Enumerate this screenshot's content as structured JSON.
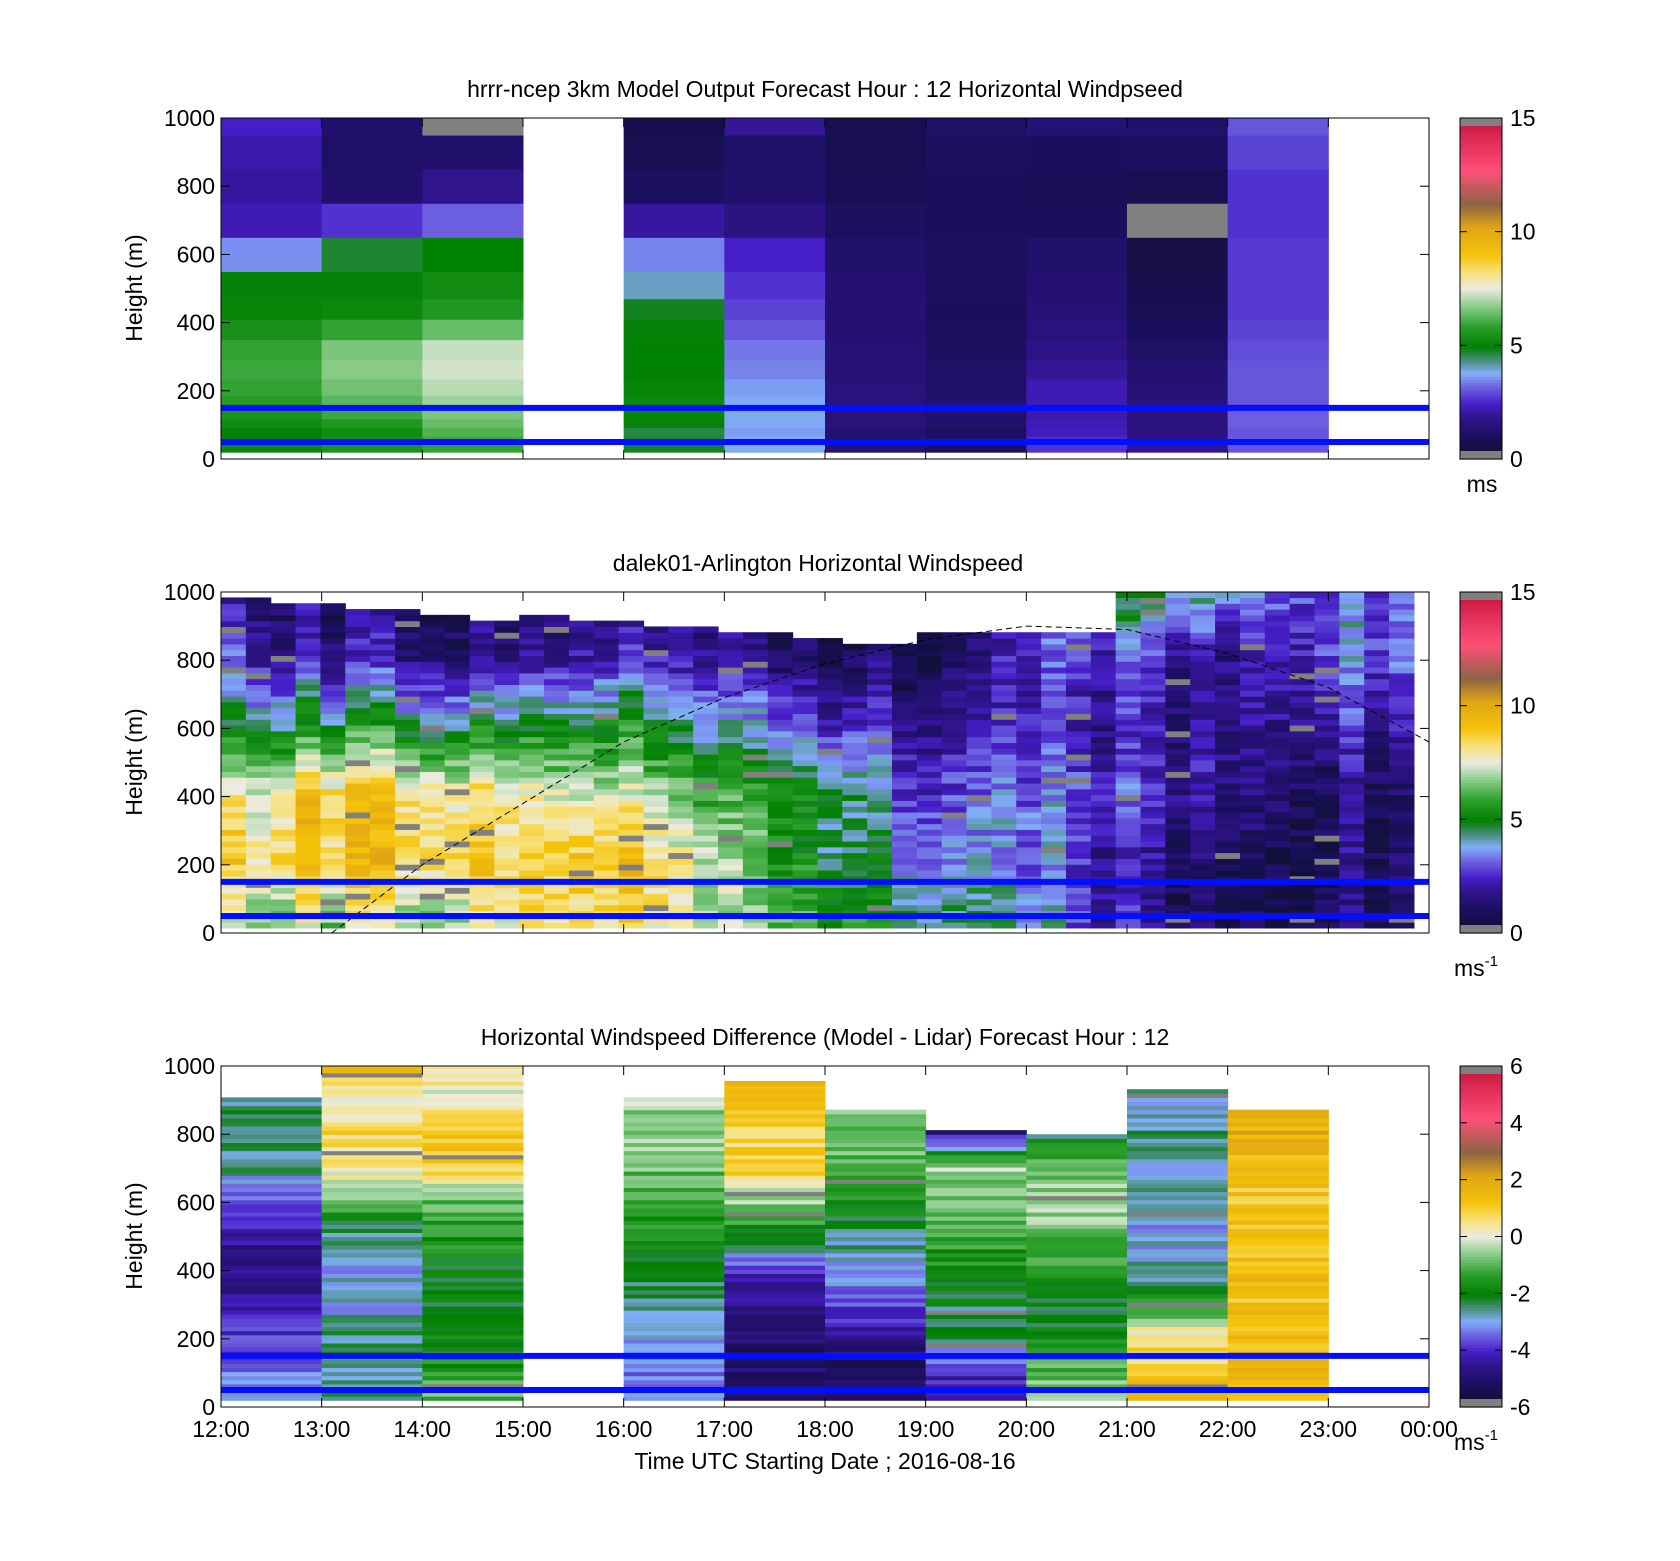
{
  "chart_data": [
    {
      "type": "heatmap",
      "title": "hrrr-ncep 3km Model Output   Forecast Hour : 12 Horizontal Windpseed",
      "ylabel": "Height (m)",
      "xlabel": "",
      "ylim": [
        0,
        1000
      ],
      "yticks": [
        "0",
        "200",
        "400",
        "600",
        "800",
        "1000"
      ],
      "xticks": [
        "12:00",
        "13:00",
        "14:00",
        "15:00",
        "16:00",
        "17:00",
        "18:00",
        "19:00",
        "20:00",
        "21:00",
        "22:00",
        "23:00",
        "00:00"
      ],
      "colorbar": {
        "range": [
          0,
          15
        ],
        "ticks": [
          "0",
          "5",
          "10",
          "15"
        ],
        "unit": "ms"
      },
      "reference_lines_m": [
        50,
        150
      ],
      "height_levels_m": [
        30,
        55,
        80,
        105,
        130,
        165,
        210,
        260,
        320,
        380,
        440,
        500,
        600,
        700,
        800,
        900,
        1000
      ],
      "columns": [
        {
          "time": "12:00",
          "speeds": [
            5.2,
            5.0,
            4.9,
            5.3,
            5.5,
            5.7,
            5.9,
            6.0,
            5.9,
            5.4,
            5.1,
            4.9,
            3.5,
            2.2,
            2.0,
            2.1,
            2.4
          ]
        },
        {
          "time": "13:00",
          "speeds": [
            5.5,
            5.4,
            5.3,
            5.6,
            6.0,
            6.3,
            6.5,
            6.7,
            6.6,
            5.9,
            5.2,
            4.9,
            4.7,
            2.6,
            1.2,
            1.1,
            1.2
          ]
        },
        {
          "time": "14:00",
          "speeds": [
            5.9,
            6.0,
            6.2,
            6.4,
            6.6,
            6.9,
            7.1,
            7.3,
            7.2,
            6.4,
            5.6,
            5.3,
            5.0,
            3.1,
            1.8,
            1.2,
            null
          ]
        },
        {
          "time": "15:00",
          "speeds": [
            null,
            null,
            null,
            null,
            null,
            null,
            null,
            null,
            null,
            null,
            null,
            null,
            null,
            null,
            null,
            null,
            null
          ]
        },
        {
          "time": "16:00",
          "speeds": [
            4.8,
            4.7,
            4.6,
            4.9,
            5.1,
            5.2,
            5.1,
            5.0,
            5.0,
            4.9,
            4.8,
            4.0,
            3.4,
            2.0,
            1.0,
            0.7,
            0.6
          ]
        },
        {
          "time": "17:00",
          "speeds": [
            3.8,
            3.7,
            3.6,
            3.7,
            3.8,
            3.7,
            3.6,
            3.4,
            3.3,
            3.0,
            2.8,
            2.6,
            2.4,
            1.6,
            1.2,
            1.1,
            1.9
          ]
        },
        {
          "time": "18:00",
          "speeds": [
            1.3,
            1.3,
            1.3,
            1.5,
            1.5,
            1.5,
            1.5,
            1.4,
            1.4,
            1.3,
            1.3,
            1.3,
            1.2,
            1.0,
            0.8,
            0.7,
            0.7
          ]
        },
        {
          "time": "19:00",
          "speeds": [
            1.0,
            1.0,
            1.0,
            1.2,
            1.2,
            1.2,
            1.1,
            1.1,
            1.0,
            1.0,
            0.9,
            1.0,
            1.0,
            0.9,
            0.9,
            1.0,
            1.1
          ]
        },
        {
          "time": "20:00",
          "speeds": [
            2.6,
            2.5,
            2.3,
            2.2,
            2.1,
            2.2,
            2.2,
            1.9,
            1.7,
            1.5,
            1.4,
            1.3,
            1.2,
            0.9,
            0.8,
            0.9,
            1.4
          ]
        },
        {
          "time": "21:00",
          "speeds": [
            1.8,
            1.7,
            1.6,
            1.6,
            1.6,
            1.5,
            1.4,
            1.3,
            1.1,
            0.9,
            0.7,
            0.6,
            0.5,
            null,
            0.7,
            1.0,
            1.2
          ]
        },
        {
          "time": "22:00",
          "speeds": [
            3.0,
            3.0,
            3.0,
            3.1,
            3.1,
            3.0,
            3.0,
            3.0,
            2.9,
            2.8,
            2.7,
            2.7,
            2.7,
            2.6,
            2.6,
            2.8,
            3.0
          ]
        },
        {
          "time": "23:00",
          "speeds": [
            null,
            null,
            null,
            null,
            null,
            null,
            null,
            null,
            null,
            null,
            null,
            null,
            null,
            null,
            null,
            null,
            null
          ]
        }
      ]
    },
    {
      "type": "heatmap",
      "title": "dalek01-Arlington  Horizontal Windspeed",
      "ylabel": "Height (m)",
      "xlabel": "",
      "ylim": [
        0,
        1000
      ],
      "yticks": [
        "0",
        "200",
        "400",
        "600",
        "800",
        "1000"
      ],
      "xticks": [
        "12:00",
        "13:00",
        "14:00",
        "15:00",
        "16:00",
        "17:00",
        "18:00",
        "19:00",
        "20:00",
        "21:00",
        "22:00",
        "23:00",
        "00:00"
      ],
      "colorbar": {
        "range": [
          0,
          15
        ],
        "ticks": [
          "0",
          "5",
          "10",
          "15"
        ],
        "unit": "ms",
        "unit_exponent": "-1"
      },
      "reference_lines_m": [
        50,
        150
      ],
      "boundary_layer_curve": [
        [
          13.1,
          0
        ],
        [
          14.0,
          200
        ],
        [
          15.0,
          380
        ],
        [
          16.0,
          560
        ],
        [
          17.0,
          690
        ],
        [
          18.0,
          790
        ],
        [
          19.0,
          860
        ],
        [
          20.0,
          900
        ],
        [
          21.0,
          890
        ],
        [
          22.0,
          820
        ],
        [
          23.0,
          720
        ],
        [
          24.0,
          560
        ]
      ],
      "profiles": [
        {
          "hour": 12.2,
          "speeds_by_200m": [
            7,
            9,
            8,
            5,
            3,
            2
          ]
        },
        {
          "hour": 13.0,
          "speeds_by_200m": [
            7,
            9,
            9,
            5,
            2,
            1
          ]
        },
        {
          "hour": 14.0,
          "speeds_by_200m": [
            7,
            9,
            9,
            5,
            2,
            1
          ]
        },
        {
          "hour": 15.0,
          "speeds_by_200m": [
            8,
            9,
            8,
            5,
            2,
            1
          ]
        },
        {
          "hour": 16.0,
          "speeds_by_200m": [
            8,
            9,
            7,
            5,
            2,
            1
          ]
        },
        {
          "hour": 17.0,
          "speeds_by_200m": [
            7,
            7,
            6,
            4,
            2,
            1
          ]
        },
        {
          "hour": 18.0,
          "speeds_by_200m": [
            6,
            5,
            5,
            3,
            1,
            1
          ]
        },
        {
          "hour": 19.0,
          "speeds_by_200m": [
            5,
            4,
            3,
            2,
            1,
            1
          ]
        },
        {
          "hour": 20.0,
          "speeds_by_200m": [
            4,
            3,
            3,
            2,
            2,
            2
          ]
        },
        {
          "hour": 21.0,
          "speeds_by_200m": [
            2,
            2,
            3,
            2,
            3,
            5
          ]
        },
        {
          "hour": 22.0,
          "speeds_by_200m": [
            1,
            1,
            2,
            2,
            2,
            4
          ]
        },
        {
          "hour": 23.0,
          "speeds_by_200m": [
            1,
            1,
            1,
            2,
            3,
            3
          ]
        },
        {
          "hour": 23.9,
          "speeds_by_200m": [
            1,
            1,
            1,
            2,
            3,
            3
          ]
        }
      ]
    },
    {
      "type": "heatmap",
      "title": "Horizontal Windspeed Difference (Model - Lidar) Forecast Hour : 12",
      "ylabel": "Height (m)",
      "xlabel": "Time UTC  Starting Date ; 2016-08-16",
      "ylim": [
        0,
        1000
      ],
      "yticks": [
        "0",
        "200",
        "400",
        "600",
        "800",
        "1000"
      ],
      "xticks": [
        "12:00",
        "13:00",
        "14:00",
        "15:00",
        "16:00",
        "17:00",
        "18:00",
        "19:00",
        "20:00",
        "21:00",
        "22:00",
        "23:00",
        "00:00"
      ],
      "colorbar": {
        "range": [
          -6,
          6
        ],
        "ticks": [
          "-6",
          "-4",
          "-2",
          "0",
          "2",
          "4",
          "6"
        ],
        "unit": "ms",
        "unit_exponent": "-1"
      },
      "reference_lines_m": [
        50,
        150
      ],
      "profile_levels_m": [
        30,
        100,
        200,
        300,
        400,
        500,
        600,
        700,
        800,
        900,
        1000
      ],
      "columns": [
        {
          "time": "12:00",
          "top_m": 900,
          "diffs": [
            -3,
            -3.5,
            -3.8,
            -4.4,
            -4.8,
            -4.5,
            -3.8,
            -2.5,
            -2.3,
            -2.6,
            null
          ]
        },
        {
          "time": "13:00",
          "top_m": 1000,
          "diffs": [
            -2.5,
            -2.6,
            -2.6,
            -3.0,
            -3.0,
            -2.5,
            -1.0,
            0.5,
            0.8,
            0.3,
            1.5
          ]
        },
        {
          "time": "14:00",
          "top_m": 1000,
          "diffs": [
            -1.0,
            -1.5,
            -2.0,
            -2.2,
            -2.0,
            -1.5,
            -1.0,
            1.0,
            1.2,
            0.0,
            0.5
          ]
        },
        {
          "time": "15:00",
          "top_m": null,
          "diffs": []
        },
        {
          "time": "16:00",
          "top_m": 900,
          "diffs": [
            -3.0,
            -3.5,
            -3.0,
            -2.6,
            -2.2,
            -1.8,
            -1.2,
            -0.8,
            -0.6,
            -0.5,
            null
          ]
        },
        {
          "time": "17:00",
          "top_m": 950,
          "diffs": [
            -5.0,
            -5.0,
            -5.0,
            -4.6,
            -4.0,
            -2.0,
            -0.5,
            1.2,
            0.6,
            1.5,
            null
          ]
        },
        {
          "time": "18:00",
          "top_m": 870,
          "diffs": [
            -5.2,
            -5.2,
            -4.5,
            -3.8,
            -3.0,
            -2.5,
            -1.8,
            -1.0,
            -0.8,
            null,
            null
          ]
        },
        {
          "time": "19:00",
          "top_m": 810,
          "diffs": [
            -4.2,
            -4.0,
            -2.5,
            -2.3,
            -1.8,
            -1.3,
            -0.8,
            -0.5,
            -4.5,
            null,
            null
          ]
        },
        {
          "time": "20:00",
          "top_m": 790,
          "diffs": [
            -0.5,
            -1.0,
            -2.0,
            -2.2,
            -1.5,
            -0.8,
            -0.5,
            -0.8,
            -2.5,
            null,
            null
          ]
        },
        {
          "time": "21:00",
          "top_m": 930,
          "diffs": [
            1.5,
            1.0,
            0.5,
            -1.5,
            -2.8,
            -3.0,
            -2.8,
            -3.0,
            -2.6,
            -2.8,
            null
          ]
        },
        {
          "time": "22:00",
          "top_m": 870,
          "diffs": [
            1.5,
            1.5,
            1.4,
            1.3,
            1.4,
            1.3,
            1.2,
            1.3,
            1.8,
            null,
            null
          ]
        }
      ]
    }
  ]
}
